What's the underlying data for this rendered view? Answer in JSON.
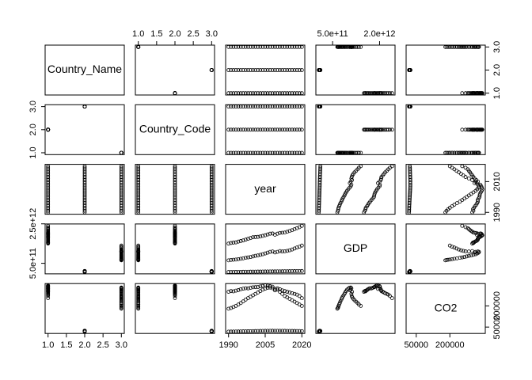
{
  "chart_data": {
    "type": "scatter_matrix",
    "variables": [
      {
        "name": "Country_Name",
        "lim": [
          0.92,
          3.08
        ],
        "xticks": [
          {
            "value": 1,
            "label": "1.0"
          },
          {
            "value": 1.5,
            "label": "1.5"
          },
          {
            "value": 2,
            "label": "2.0"
          },
          {
            "value": 2.5,
            "label": "2.5"
          },
          {
            "value": 3,
            "label": "3.0"
          }
        ],
        "yticks": [
          {
            "value": 1,
            "label": "1.0"
          },
          {
            "value": 2,
            "label": "2.0"
          },
          {
            "value": 3,
            "label": "3.0"
          }
        ],
        "values": [
          1,
          1,
          1,
          1,
          1,
          1,
          1,
          1,
          1,
          1,
          1,
          1,
          1,
          1,
          1,
          1,
          1,
          1,
          1,
          1,
          1,
          1,
          1,
          1,
          1,
          1,
          1,
          1,
          1,
          1,
          1,
          2,
          2,
          2,
          2,
          2,
          2,
          2,
          2,
          2,
          2,
          2,
          2,
          2,
          2,
          2,
          2,
          2,
          2,
          2,
          2,
          2,
          2,
          2,
          2,
          2,
          2,
          2,
          2,
          2,
          2,
          2,
          3,
          3,
          3,
          3,
          3,
          3,
          3,
          3,
          3,
          3,
          3,
          3,
          3,
          3,
          3,
          3,
          3,
          3,
          3,
          3,
          3,
          3,
          3,
          3,
          3,
          3,
          3,
          3,
          3,
          3,
          3
        ]
      },
      {
        "name": "Country_Code",
        "lim": [
          0.92,
          3.08
        ],
        "xticks": [
          {
            "value": 1,
            "label": "1.0"
          },
          {
            "value": 1.5,
            "label": "1.5"
          },
          {
            "value": 2,
            "label": "2.0"
          },
          {
            "value": 2.5,
            "label": "2.5"
          },
          {
            "value": 3,
            "label": "3.0"
          }
        ],
        "yticks": [
          {
            "value": 1,
            "label": "1.0"
          },
          {
            "value": 2,
            "label": "2.0"
          },
          {
            "value": 3,
            "label": "3.0"
          }
        ],
        "values": [
          2,
          2,
          2,
          2,
          2,
          2,
          2,
          2,
          2,
          2,
          2,
          2,
          2,
          2,
          2,
          2,
          2,
          2,
          2,
          2,
          2,
          2,
          2,
          2,
          2,
          2,
          2,
          2,
          2,
          2,
          2,
          3,
          3,
          3,
          3,
          3,
          3,
          3,
          3,
          3,
          3,
          3,
          3,
          3,
          3,
          3,
          3,
          3,
          3,
          3,
          3,
          3,
          3,
          3,
          3,
          3,
          3,
          3,
          3,
          3,
          3,
          3,
          1,
          1,
          1,
          1,
          1,
          1,
          1,
          1,
          1,
          1,
          1,
          1,
          1,
          1,
          1,
          1,
          1,
          1,
          1,
          1,
          1,
          1,
          1,
          1,
          1,
          1,
          1,
          1,
          1,
          1,
          1
        ]
      },
      {
        "name": "year",
        "lim": [
          1988.8,
          2021.2
        ],
        "xticks": [
          1990,
          2005,
          2020
        ],
        "yticks": [
          1990,
          2010
        ],
        "values": [
          1990,
          1991,
          1992,
          1993,
          1994,
          1995,
          1996,
          1997,
          1998,
          1999,
          2000,
          2001,
          2002,
          2003,
          2004,
          2005,
          2006,
          2007,
          2008,
          2009,
          2010,
          2011,
          2012,
          2013,
          2014,
          2015,
          2016,
          2017,
          2018,
          2019,
          2020,
          1990,
          1991,
          1992,
          1993,
          1994,
          1995,
          1996,
          1997,
          1998,
          1999,
          2000,
          2001,
          2002,
          2003,
          2004,
          2005,
          2006,
          2007,
          2008,
          2009,
          2010,
          2011,
          2012,
          2013,
          2014,
          2015,
          2016,
          2017,
          2018,
          2019,
          2020,
          1990,
          1991,
          1992,
          1993,
          1994,
          1995,
          1996,
          1997,
          1998,
          1999,
          2000,
          2001,
          2002,
          2003,
          2004,
          2005,
          2006,
          2007,
          2008,
          2009,
          2010,
          2011,
          2012,
          2013,
          2014,
          2015,
          2016,
          2017,
          2018,
          2019,
          2020
        ]
      },
      {
        "name": "GDP",
        "lim": [
          -34000000000.0,
          2494000000000.0
        ],
        "xticks": [
          {
            "value": 500000000000.0,
            "label": "5.0e+11"
          },
          {
            "value": 2000000000000.0,
            "label": "2.0e+12"
          }
        ],
        "yticks": [
          {
            "value": 500000000000.0,
            "label": "5.0e+11"
          },
          {
            "value": 2500000000000.0,
            "label": "2.5e+12"
          }
        ],
        "values": [
          1500000000000.0,
          1530000000000.0,
          1550000000000.0,
          1560000000000.0,
          1600000000000.0,
          1630000000000.0,
          1660000000000.0,
          1700000000000.0,
          1740000000000.0,
          1780000000000.0,
          1820000000000.0,
          1830000000000.0,
          1840000000000.0,
          1860000000000.0,
          1890000000000.0,
          1920000000000.0,
          1960000000000.0,
          2000000000000.0,
          2010000000000.0,
          1950000000000.0,
          2000000000000.0,
          2040000000000.0,
          2050000000000.0,
          2060000000000.0,
          2100000000000.0,
          2140000000000.0,
          2180000000000.0,
          2230000000000.0,
          2280000000000.0,
          2330000000000.0,
          2400000000000.0,
          60000000000.0,
          62000000000.0,
          63000000000.0,
          65000000000.0,
          66000000000.0,
          68000000000.0,
          70000000000.0,
          71000000000.0,
          73000000000.0,
          74000000000.0,
          76000000000.0,
          77000000000.0,
          79000000000.0,
          80000000000.0,
          82000000000.0,
          84000000000.0,
          86000000000.0,
          88000000000.0,
          90000000000.0,
          89000000000.0,
          91000000000.0,
          93000000000.0,
          95000000000.0,
          96000000000.0,
          98000000000.0,
          100000000000.0,
          102000000000.0,
          104000000000.0,
          106000000000.0,
          108000000000.0,
          110000000000.0,
          650000000000.0,
          670000000000.0,
          680000000000.0,
          690000000000.0,
          710000000000.0,
          730000000000.0,
          750000000000.0,
          780000000000.0,
          800000000000.0,
          820000000000.0,
          850000000000.0,
          880000000000.0,
          900000000000.0,
          930000000000.0,
          960000000000.0,
          1000000000000.0,
          1040000000000.0,
          1080000000000.0,
          1100000000000.0,
          1050000000000.0,
          1080000000000.0,
          1120000000000.0,
          1100000000000.0,
          1110000000000.0,
          1130000000000.0,
          1160000000000.0,
          1200000000000.0,
          1250000000000.0,
          1300000000000.0,
          1340000000000.0,
          1400000000000.0
        ]
      },
      {
        "name": "CO2",
        "lim": [
          4920,
          358080
        ],
        "xticks": [
          50000,
          200000
        ],
        "yticks": [
          50000,
          200000
        ],
        "values": [
          300000,
          305000,
          303000,
          308000,
          312000,
          318000,
          322000,
          325000,
          324000,
          328000,
          332000,
          333000,
          334000,
          338000,
          342000,
          345000,
          343000,
          340000,
          336000,
          320000,
          325000,
          318000,
          310000,
          305000,
          300000,
          295000,
          290000,
          285000,
          280000,
          270000,
          255000,
          18000,
          18300,
          18500,
          18800,
          19000,
          19400,
          19800,
          20100,
          20500,
          20900,
          21300,
          21700,
          22000,
          22400,
          22800,
          23100,
          23400,
          23600,
          23800,
          23500,
          23700,
          23600,
          23400,
          23200,
          23000,
          22800,
          22600,
          22400,
          22200,
          22000,
          21500,
          180000,
          185000,
          192000,
          200000,
          210000,
          220000,
          232000,
          245000,
          255000,
          265000,
          275000,
          285000,
          295000,
          305000,
          315000,
          322000,
          328000,
          330000,
          325000,
          310000,
          315000,
          300000,
          285000,
          270000,
          260000,
          250000,
          240000,
          230000,
          220000,
          210000,
          200000
        ]
      }
    ]
  }
}
